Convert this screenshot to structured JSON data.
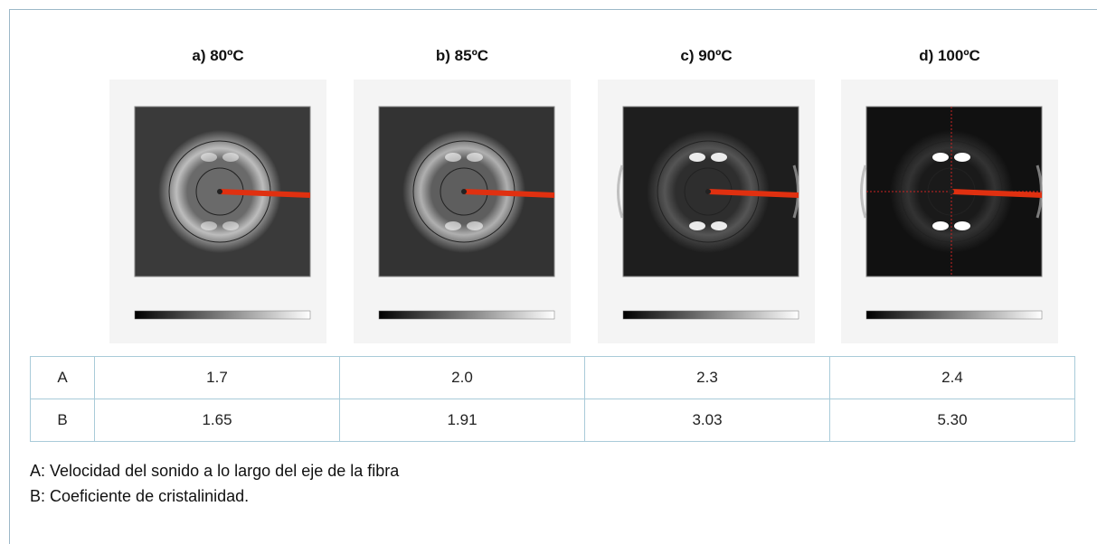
{
  "panels": [
    {
      "title": "a)  80ºC"
    },
    {
      "title": "b)  85ºC"
    },
    {
      "title": "c)  90ºC"
    },
    {
      "title": "d)  100ºC"
    }
  ],
  "table": {
    "rows": [
      [
        "A",
        "1.7",
        "2.0",
        "2.3",
        "2.4"
      ],
      [
        "B",
        "1.65",
        "1.91",
        "3.03",
        "5.30"
      ]
    ]
  },
  "notes": [
    "A: Velocidad del sonido a lo largo del eje de la fibra",
    "B: Coeficiente de cristalinidad."
  ]
}
